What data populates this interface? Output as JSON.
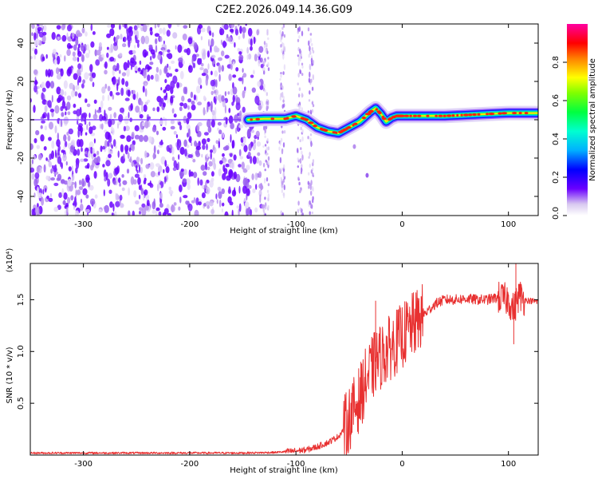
{
  "title": "C2E2.2026.049.14.36.G09",
  "chart_data": [
    {
      "type": "heatmap",
      "name": "spectrogram",
      "xlabel": "Height of straight line (km)",
      "ylabel": "Frequency (Hz)",
      "xlim": [
        -350,
        128
      ],
      "ylim": [
        -50,
        50
      ],
      "xticks": [
        -300,
        -200,
        -100,
        0,
        100
      ],
      "yticks": [
        -40,
        -20,
        0,
        20,
        40
      ],
      "colorbar": {
        "label": "Normalized spectral amplitude",
        "range": [
          0,
          1
        ],
        "ticks": [
          0.0,
          0.2,
          0.4,
          0.6,
          0.8
        ],
        "tick_labels": [
          "0.0",
          "0.2",
          "0.4",
          "0.6",
          "0.8"
        ]
      },
      "ridge": {
        "x": [
          -145,
          -130,
          -110,
          -100,
          -90,
          -80,
          -70,
          -60,
          -50,
          -40,
          -30,
          -25,
          -20,
          -15,
          -10,
          -5,
          0,
          20,
          40,
          60,
          80,
          100,
          128
        ],
        "y": [
          0,
          0.5,
          0.5,
          2,
          0,
          -4,
          -6,
          -7,
          -4,
          -1,
          4,
          6,
          3,
          -1,
          1,
          2,
          2,
          2,
          2,
          2.5,
          3,
          3.5,
          3.5
        ]
      }
    },
    {
      "type": "line",
      "name": "snr",
      "xlabel": "Height of straight line (km)",
      "ylabel": "SNR (10 * v/v)",
      "y_multiplier_label": "(x10⁴)",
      "xlim": [
        -350,
        128
      ],
      "ylim": [
        0,
        1.85
      ],
      "xticks": [
        -300,
        -200,
        -100,
        0,
        100
      ],
      "yticks": [
        0.5,
        1.0,
        1.5
      ],
      "ytick_labels": [
        "0.5",
        "1.0",
        "1.5"
      ],
      "color": "#e83030",
      "series": [
        {
          "name": "SNR",
          "x": [
            -350,
            -300,
            -250,
            -200,
            -150,
            -120,
            -100,
            -90,
            -80,
            -70,
            -60,
            -55,
            -50,
            -45,
            -40,
            -35,
            -30,
            -25,
            -20,
            -15,
            -10,
            -5,
            0,
            5,
            10,
            15,
            20,
            25,
            30,
            35,
            40,
            50,
            60,
            70,
            80,
            90,
            100,
            105,
            110,
            115,
            120,
            128
          ],
          "y": [
            0.02,
            0.02,
            0.02,
            0.02,
            0.02,
            0.025,
            0.04,
            0.05,
            0.08,
            0.12,
            0.18,
            0.25,
            0.35,
            0.45,
            0.55,
            0.7,
            0.8,
            0.9,
            0.95,
            1.0,
            1.05,
            1.1,
            1.15,
            1.2,
            1.25,
            1.3,
            1.35,
            1.4,
            1.45,
            1.48,
            1.5,
            1.5,
            1.51,
            1.5,
            1.5,
            1.52,
            1.5,
            1.4,
            1.55,
            1.5,
            1.49,
            1.48
          ]
        }
      ]
    }
  ]
}
